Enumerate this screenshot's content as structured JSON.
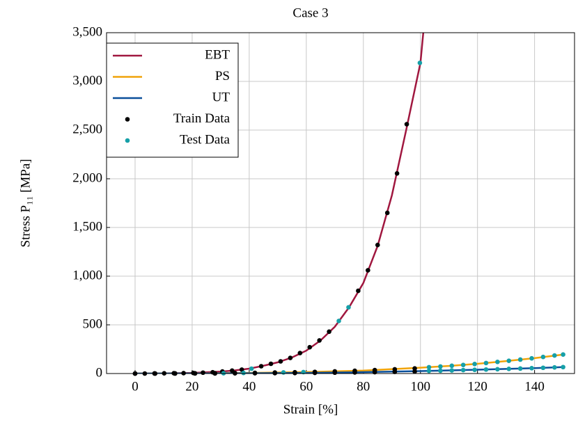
{
  "chart_data": {
    "type": "line",
    "title": "Case 3",
    "xlabel": "Strain [%]",
    "ylabel": "Stress P₁₁ [MPa]",
    "xlim": [
      -10,
      154
    ],
    "ylim": [
      0,
      3500
    ],
    "xticks": [
      0,
      20,
      40,
      60,
      80,
      100,
      120,
      140
    ],
    "yticks": [
      0,
      500,
      {
        "value": 1000,
        "label": "1,000"
      },
      {
        "value": 1500,
        "label": "1,500"
      },
      {
        "value": 2000,
        "label": "2,000"
      },
      {
        "value": 2500,
        "label": "2,500"
      },
      {
        "value": 3000,
        "label": "3,000"
      },
      {
        "value": 3500,
        "label": "3,500"
      }
    ],
    "grid": true,
    "legend": "upper left",
    "series": [
      {
        "name": "EBT",
        "type": "line",
        "color": "#a0173f",
        "x": [
          0,
          10,
          20,
          30,
          35,
          40,
          45,
          50,
          55,
          60,
          65,
          70,
          75,
          80,
          85,
          90,
          95,
          100,
          101
        ],
        "values": [
          0,
          2,
          6,
          20,
          32,
          50,
          80,
          115,
          165,
          235,
          340,
          480,
          680,
          930,
          1310,
          1830,
          2500,
          3190,
          3500
        ]
      },
      {
        "name": "PS",
        "type": "line",
        "color": "#f0a30a",
        "x": [
          0,
          20,
          40,
          60,
          80,
          100,
          110,
          120,
          130,
          140,
          150
        ],
        "values": [
          0,
          2,
          6,
          15,
          30,
          60,
          78,
          100,
          128,
          158,
          195
        ]
      },
      {
        "name": "UT",
        "type": "line",
        "color": "#0a4f9a",
        "x": [
          0,
          20,
          40,
          60,
          80,
          100,
          120,
          140,
          150
        ],
        "values": [
          0,
          1,
          3,
          6,
          14,
          25,
          39,
          55,
          66
        ]
      },
      {
        "name": "Train Data",
        "type": "scatter",
        "color": "#000000",
        "x": [
          0,
          3.4,
          6.8,
          10.2,
          13.6,
          17,
          20.4,
          23.8,
          27.2,
          30.6,
          34,
          37.4,
          44.2,
          47.6,
          51,
          54.4,
          57.8,
          61.2,
          64.6,
          68,
          78.2,
          81.6,
          85,
          88.4,
          91.8,
          95.2,
          0,
          7,
          14,
          21,
          28,
          35,
          42,
          49,
          56,
          63,
          70,
          77,
          84,
          91,
          98,
          0,
          7,
          14,
          21,
          28,
          35,
          42,
          49,
          56,
          63,
          70,
          77,
          84,
          91,
          98
        ],
        "values": [
          0,
          0,
          1,
          2,
          3,
          4,
          6,
          9,
          13,
          21,
          30,
          40,
          75,
          100,
          125,
          160,
          210,
          270,
          340,
          430,
          850,
          1060,
          1320,
          1650,
          2055,
          2560,
          0,
          0,
          1,
          2,
          3,
          5,
          7,
          10,
          13,
          17,
          22,
          28,
          35,
          43,
          52,
          0,
          0,
          0,
          1,
          1,
          2,
          3,
          4,
          5,
          7,
          9,
          11,
          14,
          17,
          21
        ]
      },
      {
        "name": "Test Data",
        "type": "scatter",
        "color": "#16a0a8",
        "x": [
          40.8,
          71.4,
          74.8,
          99.8,
          31,
          38,
          52,
          59,
          103,
          107,
          111,
          115,
          119,
          123,
          127,
          131,
          135,
          139,
          143,
          147,
          150,
          103,
          107,
          111,
          115,
          119,
          123,
          127,
          131,
          135,
          139,
          143,
          147,
          150
        ],
        "values": [
          50,
          540,
          680,
          3190,
          3,
          6,
          11,
          15,
          65,
          72,
          80,
          88,
          98,
          108,
          119,
          131,
          143,
          156,
          170,
          185,
          195,
          27,
          29,
          32,
          35,
          38,
          41,
          44,
          48,
          51,
          55,
          59,
          63,
          66
        ]
      }
    ]
  }
}
